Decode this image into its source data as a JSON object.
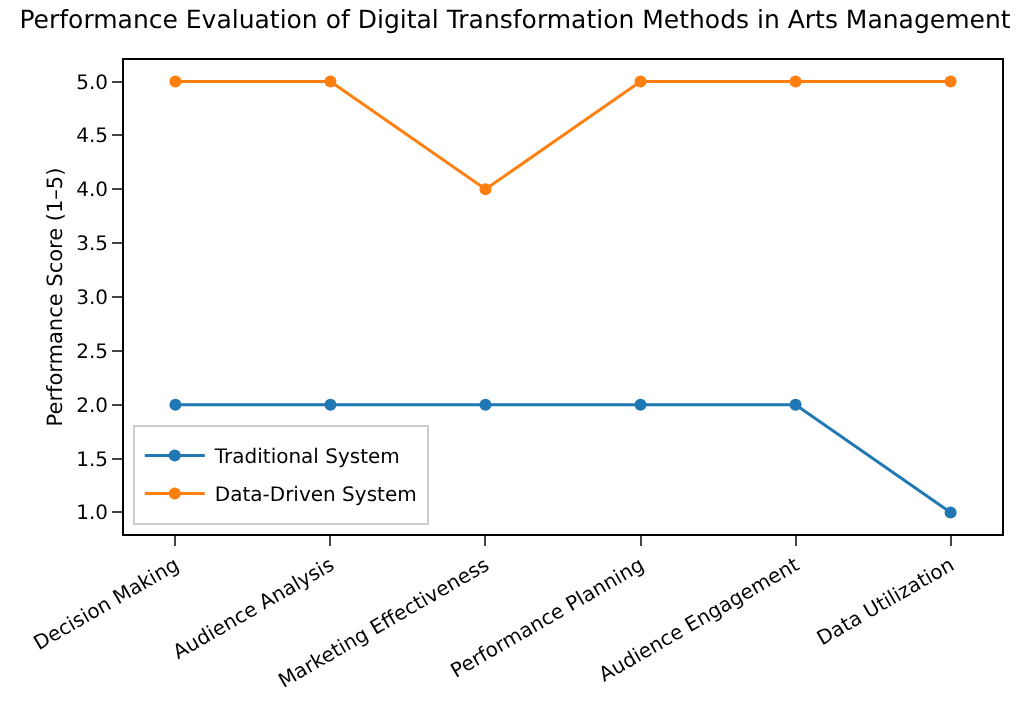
{
  "chart_data": {
    "type": "line",
    "title": "Performance Evaluation of Digital Transformation Methods in Arts Management",
    "ylabel": "Performance Score (1–5)",
    "categories": [
      "Decision Making",
      "Audience Analysis",
      "Marketing Effectiveness",
      "Performance Planning",
      "Audience Engagement",
      "Data Utilization"
    ],
    "series": [
      {
        "name": "Traditional System",
        "color": "#1f77b4",
        "values": [
          2,
          2,
          2,
          2,
          2,
          1
        ]
      },
      {
        "name": "Data-Driven System",
        "color": "#ff7f0e",
        "values": [
          5,
          5,
          4,
          5,
          5,
          5
        ]
      }
    ],
    "ylim": [
      0.8,
      5.2
    ],
    "yticks": [
      {
        "value": 1,
        "label": "1.0"
      },
      {
        "value": 1.5,
        "label": "1.5"
      },
      {
        "value": 2,
        "label": "2.0"
      },
      {
        "value": 2.5,
        "label": "2.5"
      },
      {
        "value": 3,
        "label": "3.0"
      },
      {
        "value": 3.5,
        "label": "3.5"
      },
      {
        "value": 4,
        "label": "4.0"
      },
      {
        "value": 4.5,
        "label": "4.5"
      },
      {
        "value": 5,
        "label": "5.0"
      }
    ],
    "grid": false,
    "legend": "bottom left",
    "marker": "circle",
    "line_style": "solid"
  }
}
